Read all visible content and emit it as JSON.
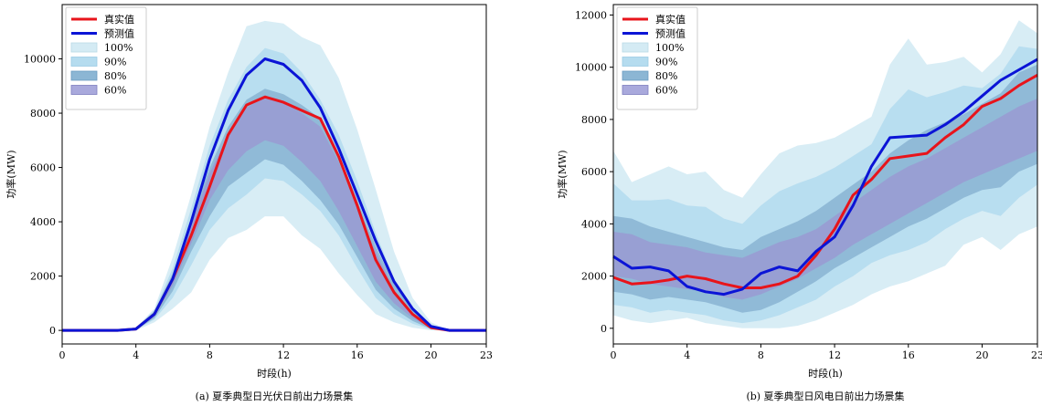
{
  "chart_data": [
    {
      "type": "line",
      "caption": "(a) 夏季典型日光伏日前出力场景集",
      "xlabel": "时段(h)",
      "ylabel": "功率(MW)",
      "xlim": [
        0,
        23
      ],
      "ylim": [
        -500,
        12000
      ],
      "xticks": [
        0,
        4,
        8,
        12,
        16,
        20,
        23
      ],
      "yticks": [
        0,
        2000,
        4000,
        6000,
        8000,
        10000
      ],
      "legend": "top-left",
      "x": [
        0,
        1,
        2,
        3,
        4,
        5,
        6,
        7,
        8,
        9,
        10,
        11,
        12,
        13,
        14,
        15,
        16,
        17,
        18,
        19,
        20,
        21,
        22,
        23
      ],
      "series": [
        {
          "name": "真实值",
          "color": "#e8141b",
          "values": [
            0,
            0,
            0,
            0,
            50,
            600,
            1900,
            3500,
            5300,
            7200,
            8300,
            8600,
            8400,
            8100,
            7800,
            6400,
            4600,
            2600,
            1400,
            600,
            100,
            0,
            0,
            0
          ]
        },
        {
          "name": "预测值",
          "color": "#0b14d6",
          "values": [
            0,
            0,
            0,
            0,
            50,
            600,
            1900,
            4000,
            6300,
            8100,
            9400,
            10000,
            9800,
            9200,
            8200,
            6700,
            5000,
            3300,
            1800,
            800,
            150,
            0,
            0,
            0
          ]
        }
      ],
      "bands": [
        {
          "name": "100%",
          "color": "#d4ebf4",
          "lower": [
            0,
            0,
            0,
            0,
            0,
            300,
            800,
            1400,
            2600,
            3400,
            3700,
            4200,
            4200,
            3500,
            3000,
            2100,
            1300,
            600,
            300,
            100,
            0,
            0,
            0,
            0
          ],
          "upper": [
            0,
            0,
            0,
            0,
            100,
            800,
            2700,
            5000,
            7500,
            9500,
            11200,
            11400,
            11300,
            10800,
            10500,
            9300,
            7400,
            5200,
            2900,
            1200,
            300,
            0,
            0,
            0
          ]
        },
        {
          "name": "90%",
          "color": "#b5dcef",
          "lower": [
            0,
            0,
            0,
            0,
            20,
            400,
            1200,
            2400,
            3700,
            4500,
            5000,
            5600,
            5500,
            5000,
            4400,
            3500,
            2300,
            1200,
            600,
            250,
            30,
            0,
            0,
            0
          ],
          "upper": [
            0,
            0,
            0,
            0,
            80,
            750,
            2300,
            4500,
            6800,
            8500,
            9700,
            10400,
            10200,
            9500,
            8500,
            7200,
            5500,
            3600,
            1900,
            850,
            180,
            0,
            0,
            0
          ]
        },
        {
          "name": "80%",
          "color": "#8cb6d4",
          "lower": [
            0,
            0,
            0,
            0,
            30,
            450,
            1450,
            2900,
            4200,
            5300,
            5800,
            6300,
            6100,
            5500,
            4800,
            3900,
            2700,
            1500,
            800,
            350,
            50,
            0,
            0,
            0
          ],
          "upper": [
            0,
            0,
            0,
            0,
            70,
            700,
            2100,
            4100,
            6000,
            7500,
            8500,
            8900,
            8700,
            8300,
            7800,
            6500,
            4800,
            3100,
            1700,
            750,
            150,
            0,
            0,
            0
          ]
        },
        {
          "name": "60%",
          "color": "#9a9ad2",
          "lower": [
            0,
            0,
            0,
            0,
            40,
            520,
            1650,
            3200,
            4800,
            5900,
            6600,
            7000,
            6800,
            6200,
            5500,
            4400,
            3100,
            1800,
            1000,
            450,
            70,
            0,
            0,
            0
          ],
          "upper": [
            0,
            0,
            0,
            0,
            60,
            650,
            1950,
            3900,
            5800,
            7200,
            8200,
            8600,
            8400,
            8000,
            7500,
            6200,
            4500,
            2900,
            1500,
            650,
            120,
            0,
            0,
            0
          ]
        }
      ]
    },
    {
      "type": "line",
      "caption": "(b) 夏季典型日风电日前出力场景集",
      "xlabel": "时段(h)",
      "ylabel": "功率(MW)",
      "xlim": [
        0,
        23
      ],
      "ylim": [
        -600,
        12400
      ],
      "xticks": [
        0,
        4,
        8,
        12,
        16,
        20,
        23
      ],
      "yticks": [
        0,
        2000,
        4000,
        6000,
        8000,
        10000,
        12000
      ],
      "legend": "top-left",
      "x": [
        0,
        1,
        2,
        3,
        4,
        5,
        6,
        7,
        8,
        9,
        10,
        11,
        12,
        13,
        14,
        15,
        16,
        17,
        18,
        19,
        20,
        21,
        22,
        23
      ],
      "series": [
        {
          "name": "真实值",
          "color": "#e8141b",
          "values": [
            1950,
            1700,
            1750,
            1850,
            2000,
            1900,
            1700,
            1550,
            1550,
            1700,
            2000,
            2800,
            3800,
            5100,
            5700,
            6500,
            6600,
            6700,
            7300,
            7800,
            8500,
            8800,
            9300,
            9700
          ]
        },
        {
          "name": "预测值",
          "color": "#0b14d6",
          "values": [
            2750,
            2300,
            2350,
            2200,
            1600,
            1400,
            1300,
            1500,
            2100,
            2350,
            2200,
            2950,
            3500,
            4700,
            6200,
            7300,
            7350,
            7400,
            7800,
            8300,
            8900,
            9500,
            9900,
            10300
          ]
        }
      ],
      "bands": [
        {
          "name": "100%",
          "color": "#d4ebf4",
          "lower": [
            500,
            300,
            200,
            300,
            400,
            200,
            100,
            0,
            0,
            0,
            100,
            300,
            600,
            900,
            1300,
            1600,
            1800,
            2100,
            2400,
            3200,
            3500,
            3000,
            3600,
            3900
          ],
          "upper": [
            6800,
            5600,
            5900,
            6200,
            5900,
            6000,
            5300,
            5000,
            5900,
            6700,
            7000,
            7100,
            7300,
            7700,
            8100,
            10100,
            11100,
            10100,
            10200,
            10400,
            9800,
            10500,
            11800,
            11300
          ]
        },
        {
          "name": "90%",
          "color": "#b5dcef",
          "lower": [
            900,
            800,
            600,
            700,
            600,
            500,
            300,
            200,
            300,
            500,
            800,
            1100,
            1600,
            2000,
            2500,
            2800,
            3000,
            3300,
            3800,
            4200,
            4500,
            4300,
            5000,
            5500
          ]
        },
        {
          "name": "80%",
          "color": "#8cb6d4",
          "lower": [
            1400,
            1300,
            1100,
            1200,
            1100,
            1000,
            800,
            600,
            700,
            1000,
            1400,
            1800,
            2300,
            2700,
            3100,
            3500,
            3900,
            4200,
            4600,
            5000,
            5300,
            5400,
            6000,
            6300
          ],
          "upper": [
            4300,
            4200,
            3900,
            3700,
            3500,
            3300,
            3100,
            3000,
            3500,
            3800,
            4100,
            4500,
            5000,
            5500,
            6000,
            6700,
            7200,
            7600,
            7900,
            8200,
            8600,
            9000,
            9800,
            10100
          ]
        },
        {
          "name": "60%",
          "color": "#9a9ad2",
          "lower": [
            2000,
            1900,
            1700,
            1600,
            1500,
            1400,
            1200,
            1100,
            1300,
            1600,
            1900,
            2300,
            2700,
            3200,
            3600,
            4000,
            4400,
            4800,
            5200,
            5600,
            5900,
            6200,
            6500,
            6800
          ],
          "upper": [
            3700,
            3600,
            3300,
            3200,
            3100,
            2900,
            2800,
            2700,
            3000,
            3300,
            3500,
            3800,
            4300,
            4800,
            5300,
            5800,
            6200,
            6500,
            6900,
            7300,
            7700,
            8100,
            8500,
            8800
          ]
        }
      ]
    }
  ]
}
